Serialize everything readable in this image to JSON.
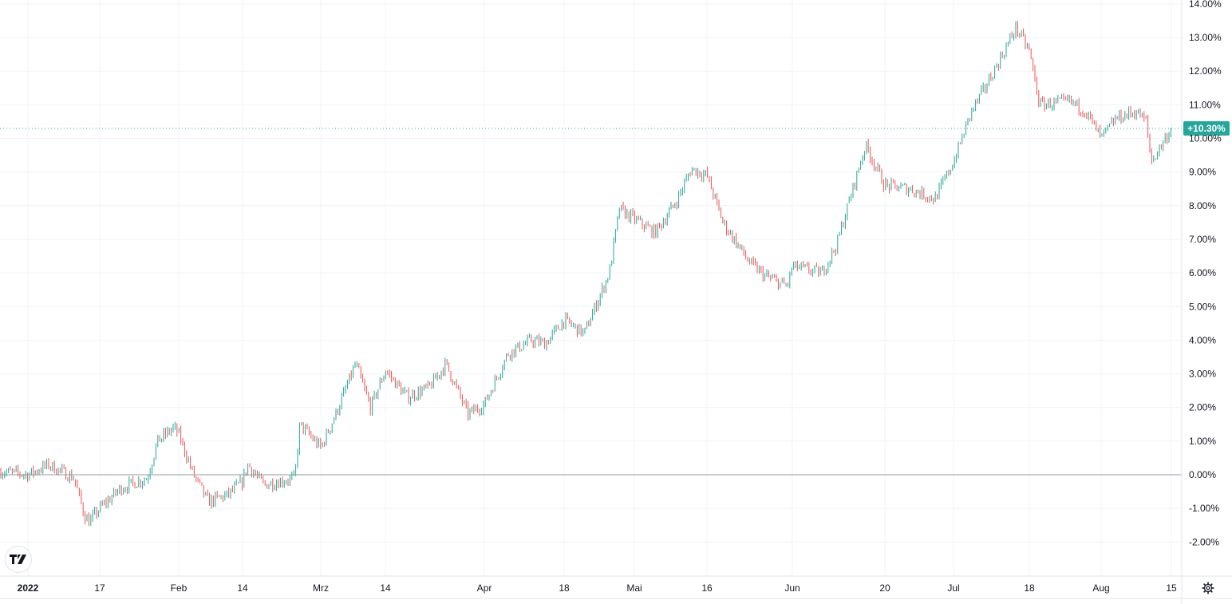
{
  "chart_data": {
    "type": "candlestick",
    "y_unit": "%",
    "ylim": [
      -2.4,
      14.1
    ],
    "y_ticks": [
      "14.00%",
      "13.00%",
      "12.00%",
      "11.00%",
      "10.00%",
      "9.00%",
      "8.00%",
      "7.00%",
      "6.00%",
      "5.00%",
      "4.00%",
      "3.00%",
      "2.00%",
      "1.00%",
      "0.00%",
      "-1.00%",
      "-2.00%"
    ],
    "y_tick_values": [
      14,
      13,
      12,
      11,
      10,
      9,
      8,
      7,
      6,
      5,
      4,
      3,
      2,
      1,
      0,
      -1,
      -2
    ],
    "x_ticks": [
      {
        "label": "2022",
        "date": "2022-01-03",
        "bold": true
      },
      {
        "label": "17",
        "date": "2022-01-17"
      },
      {
        "label": "Feb",
        "date": "2022-02-01"
      },
      {
        "label": "14",
        "date": "2022-02-14"
      },
      {
        "label": "Mrz",
        "date": "2022-03-01"
      },
      {
        "label": "14",
        "date": "2022-03-14"
      },
      {
        "label": "Apr",
        "date": "2022-04-01"
      },
      {
        "label": "18",
        "date": "2022-04-18"
      },
      {
        "label": "Mai",
        "date": "2022-05-02"
      },
      {
        "label": "16",
        "date": "2022-05-16"
      },
      {
        "label": "Jun",
        "date": "2022-06-01"
      },
      {
        "label": "20",
        "date": "2022-06-20"
      },
      {
        "label": "Jul",
        "date": "2022-07-01"
      },
      {
        "label": "18",
        "date": "2022-07-18"
      },
      {
        "label": "Aug",
        "date": "2022-08-01"
      },
      {
        "label": "15",
        "date": "2022-08-15"
      }
    ],
    "approx_closes": [
      [
        "2022-01-01",
        0.1
      ],
      [
        "2022-01-03",
        0.0
      ],
      [
        "2022-01-07",
        0.3
      ],
      [
        "2022-01-12",
        -0.1
      ],
      [
        "2022-01-14",
        -1.2
      ],
      [
        "2022-01-15",
        -1.4
      ],
      [
        "2022-01-17",
        -1.0
      ],
      [
        "2022-01-21",
        -0.4
      ],
      [
        "2022-01-26",
        -0.1
      ],
      [
        "2022-01-28",
        1.0
      ],
      [
        "2022-01-31",
        1.4
      ],
      [
        "2022-02-01",
        1.2
      ],
      [
        "2022-02-04",
        0.0
      ],
      [
        "2022-02-07",
        -0.8
      ],
      [
        "2022-02-11",
        -0.6
      ],
      [
        "2022-02-14",
        -0.2
      ],
      [
        "2022-02-15",
        0.3
      ],
      [
        "2022-02-18",
        -0.3
      ],
      [
        "2022-02-24",
        -0.1
      ],
      [
        "2022-02-25",
        1.5
      ],
      [
        "2022-03-01",
        0.8
      ],
      [
        "2022-03-04",
        1.8
      ],
      [
        "2022-03-08",
        3.3
      ],
      [
        "2022-03-11",
        2.0
      ],
      [
        "2022-03-14",
        3.1
      ],
      [
        "2022-03-18",
        2.3
      ],
      [
        "2022-03-22",
        2.6
      ],
      [
        "2022-03-25",
        3.3
      ],
      [
        "2022-03-29",
        1.8
      ],
      [
        "2022-04-01",
        2.1
      ],
      [
        "2022-04-06",
        3.6
      ],
      [
        "2022-04-11",
        4.0
      ],
      [
        "2022-04-14",
        3.9
      ],
      [
        "2022-04-18",
        4.6
      ],
      [
        "2022-04-22",
        4.2
      ],
      [
        "2022-04-27",
        6.0
      ],
      [
        "2022-04-29",
        7.9
      ],
      [
        "2022-05-02",
        7.6
      ],
      [
        "2022-05-06",
        7.2
      ],
      [
        "2022-05-10",
        8.1
      ],
      [
        "2022-05-13",
        9.1
      ],
      [
        "2022-05-16",
        8.9
      ],
      [
        "2022-05-19",
        7.5
      ],
      [
        "2022-05-24",
        6.3
      ],
      [
        "2022-05-27",
        5.9
      ],
      [
        "2022-05-31",
        5.6
      ],
      [
        "2022-06-01",
        6.2
      ],
      [
        "2022-06-07",
        6.0
      ],
      [
        "2022-06-10",
        6.8
      ],
      [
        "2022-06-14",
        8.8
      ],
      [
        "2022-06-16",
        9.8
      ],
      [
        "2022-06-20",
        8.6
      ],
      [
        "2022-06-24",
        8.5
      ],
      [
        "2022-06-28",
        8.2
      ],
      [
        "2022-07-01",
        9.3
      ],
      [
        "2022-07-05",
        10.8
      ],
      [
        "2022-07-08",
        11.5
      ],
      [
        "2022-07-12",
        12.5
      ],
      [
        "2022-07-15",
        13.3
      ],
      [
        "2022-07-18",
        12.6
      ],
      [
        "2022-07-20",
        11.0
      ],
      [
        "2022-07-26",
        11.1
      ],
      [
        "2022-07-29",
        10.8
      ],
      [
        "2022-08-01",
        10.0
      ],
      [
        "2022-08-04",
        10.6
      ],
      [
        "2022-08-08",
        10.8
      ],
      [
        "2022-08-10",
        10.5
      ],
      [
        "2022-08-11",
        9.3
      ],
      [
        "2022-08-15",
        10.3
      ]
    ],
    "last_value": 10.3,
    "last_label": "+10.30%",
    "baseline": 0,
    "grid": true,
    "colors": {
      "up": "#26a69a",
      "down": "#ef5350",
      "grid": "#f0f3fa",
      "baseline": "#9598a1",
      "last_label_bg": "#26a69a"
    }
  },
  "icons": {
    "logo": "tradingview-logo",
    "settings": "gear-icon"
  }
}
